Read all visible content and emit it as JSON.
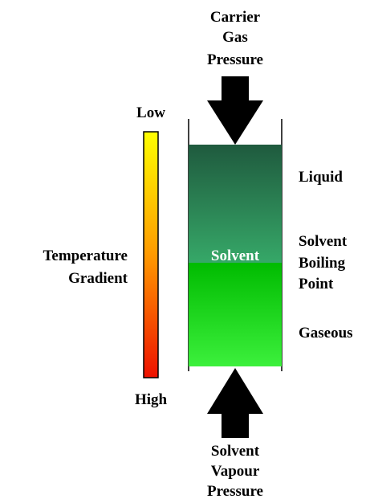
{
  "top_label": {
    "lines": [
      "Carrier",
      "Gas",
      "Pressure"
    ]
  },
  "bottom_label": {
    "lines": [
      "Solvent",
      "Vapour",
      "Pressure"
    ]
  },
  "column": {
    "label": "Solvent"
  },
  "gradient_scale": {
    "top": "Low",
    "bottom": "High",
    "label_lines": [
      "Temperature",
      "Gradient"
    ]
  },
  "zones": {
    "liquid": "Liquid",
    "boundary_lines": [
      "Solvent",
      "Boiling",
      "Point"
    ],
    "gaseous": "Gaseous"
  }
}
